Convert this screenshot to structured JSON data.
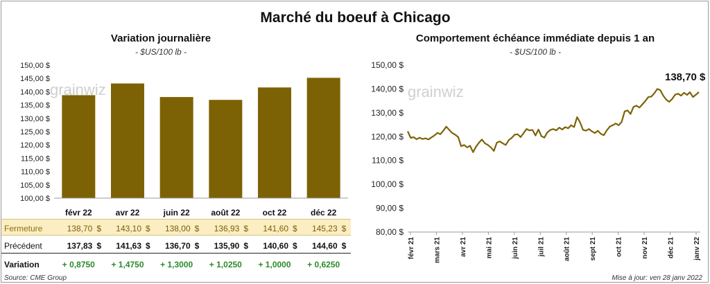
{
  "title": "Marché du boeuf à Chicago",
  "watermark": "grainwiz",
  "source": "Source: CME Group",
  "update": "Mise à jour: ven 28 janv 2022",
  "colors": {
    "bar": "#7d6205",
    "line": "#7d6205",
    "highlight": "#fbeec3",
    "positive": "#2a8a2a"
  },
  "chart_data": [
    {
      "type": "bar",
      "title": "Variation journalière",
      "subtitle": "- $US/100 lb -",
      "categories": [
        "févr 22",
        "avr 22",
        "juin 22",
        "août 22",
        "oct 22",
        "déc 22"
      ],
      "values": [
        138.7,
        143.1,
        138.0,
        136.93,
        141.6,
        145.23
      ],
      "ylim": [
        100,
        150
      ],
      "yticks": [
        "100,00 $",
        "105,00 $",
        "110,00 $",
        "115,00 $",
        "120,00 $",
        "125,00 $",
        "130,00 $",
        "135,00 $",
        "140,00 $",
        "145,00 $",
        "150,00 $"
      ],
      "table": {
        "rows": [
          {
            "label": "Fermeture",
            "values": [
              "138,70",
              "143,10",
              "138,00",
              "136,93",
              "141,60",
              "145,23"
            ],
            "currency": "$"
          },
          {
            "label": "Précédent",
            "values": [
              "137,83",
              "141,63",
              "136,70",
              "135,90",
              "140,60",
              "144,60"
            ],
            "currency": "$"
          },
          {
            "label": "Variation",
            "values": [
              "+ 0,8750",
              "+ 1,4750",
              "+ 1,3000",
              "+ 1,0250",
              "+ 1,0000",
              "+ 0,6250"
            ]
          }
        ]
      }
    },
    {
      "type": "line",
      "title": "Comportement échéance immédiate depuis 1 an",
      "subtitle": "- $US/100 lb -",
      "ylim": [
        80,
        150
      ],
      "yticks": [
        "80,00 $",
        "90,00 $",
        "100,00 $",
        "110,00 $",
        "120,00 $",
        "130,00 $",
        "140,00 $",
        "150,00 $"
      ],
      "xticks": [
        "févr 21",
        "mars 21",
        "avr 21",
        "mai 21",
        "juin 21",
        "juil 21",
        "août 21",
        "sept 21",
        "oct 21",
        "nov 21",
        "déc 21",
        "janv 22"
      ],
      "last_label": "138,70 $",
      "series": [
        {
          "values": [
            122.3,
            119.5,
            119.8,
            118.9,
            119.6,
            119.0,
            119.3,
            118.8,
            119.7,
            120.5,
            121.6,
            121.0,
            122.5,
            124.2,
            122.8,
            121.5,
            120.8,
            119.8,
            116.0,
            116.5,
            115.5,
            116.2,
            113.5,
            115.8,
            117.5,
            118.8,
            117.2,
            116.5,
            115.5,
            114.0,
            117.5,
            118.0,
            117.2,
            116.5,
            118.5,
            119.5,
            120.8,
            121.0,
            119.8,
            121.5,
            123.2,
            122.6,
            122.8,
            120.5,
            123.0,
            120.2,
            119.6,
            121.8,
            122.8,
            123.2,
            122.6,
            123.8,
            123.0,
            124.0,
            123.5,
            124.8,
            124.0,
            128.2,
            126.0,
            122.8,
            122.5,
            123.2,
            122.2,
            121.5,
            122.5,
            121.2,
            120.6,
            122.6,
            124.2,
            124.8,
            125.5,
            124.8,
            126.2,
            130.6,
            131.0,
            129.5,
            132.5,
            133.0,
            132.2,
            133.6,
            135.0,
            136.6,
            136.8,
            138.2,
            140.0,
            139.5,
            137.2,
            135.5,
            134.6,
            135.8,
            137.6,
            138.0,
            137.2,
            138.4,
            137.5,
            138.6,
            136.6,
            137.6,
            138.7
          ]
        }
      ]
    }
  ]
}
